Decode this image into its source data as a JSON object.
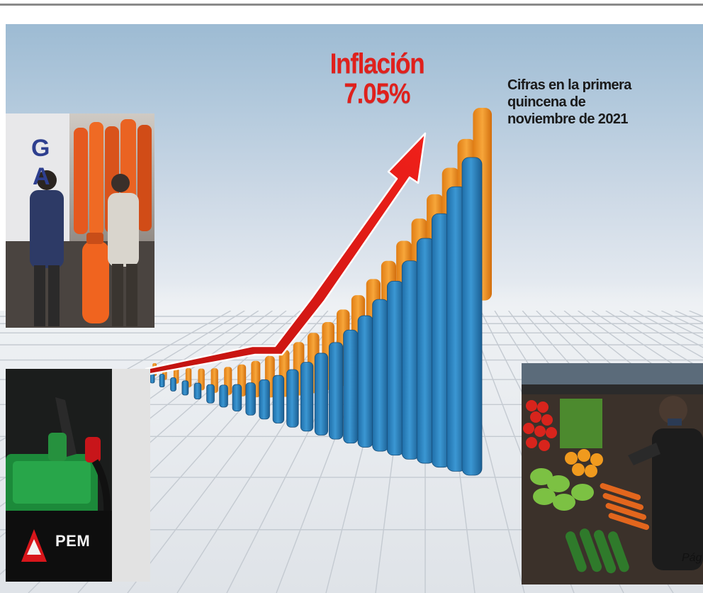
{
  "headline": {
    "title": "Inflación",
    "value": "7.05%"
  },
  "caption": {
    "line1": "Cifras en la primera",
    "line2": "quincena de",
    "line3": "noviembre  de 2021"
  },
  "photos": {
    "gas_sign_letters": [
      "G",
      "A"
    ],
    "pemex_label": "PEM"
  },
  "page_ref": "Pág",
  "colors": {
    "headline_red": "#e0201c",
    "bar_blue": "#2f87c4",
    "bar_orange": "#f39a2a",
    "arrow_red": "#e31b17"
  }
}
